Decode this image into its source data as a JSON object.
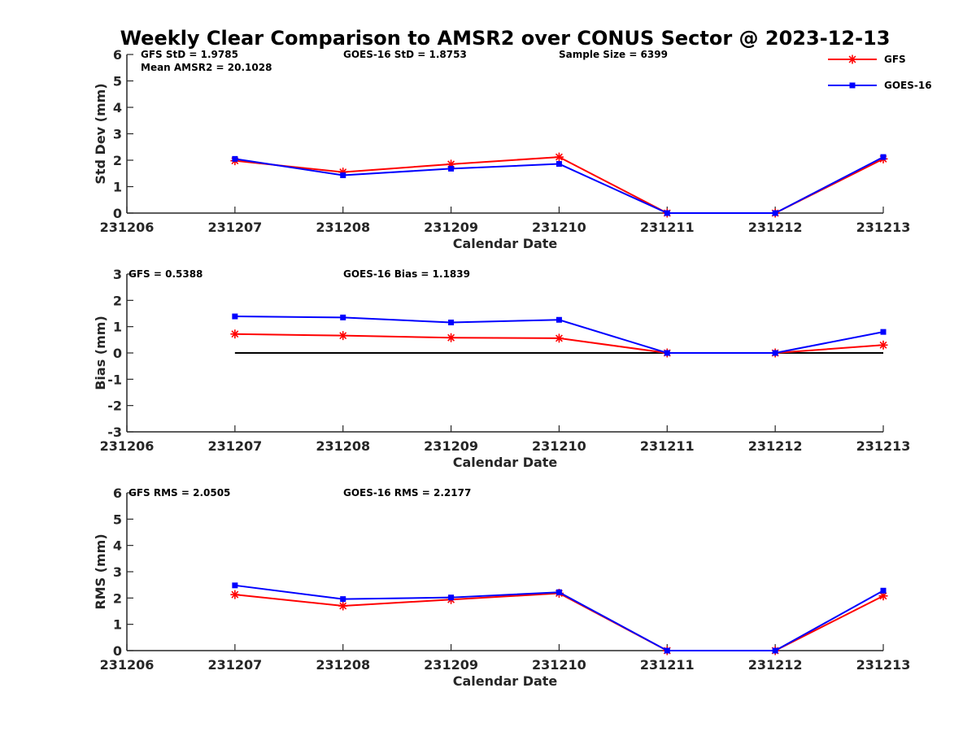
{
  "chart_data": {
    "title": "Weekly Clear Comparison to AMSR2 over CONUS Sector @ 2023-12-13",
    "x_ticks": [
      "231206",
      "231207",
      "231208",
      "231209",
      "231210",
      "231211",
      "231212",
      "231213"
    ],
    "legend": {
      "placement": "top-right",
      "entries": [
        {
          "name": "GFS",
          "color": "#ff0000",
          "marker": "asterisk"
        },
        {
          "name": "GOES-16",
          "color": "#0000ff",
          "marker": "square"
        }
      ]
    },
    "panels": [
      {
        "type": "line",
        "ylabel": "Std Dev (mm)",
        "xlabel": "Calendar Date",
        "ylim": [
          0,
          6
        ],
        "yticks": [
          "0",
          "1",
          "2",
          "3",
          "4",
          "5",
          "6"
        ],
        "annotations": [
          "GFS StD = 1.9785",
          "GOES-16 StD = 1.8753",
          "Sample Size = 6399",
          "Mean AMSR2 = 20.1028"
        ],
        "series": [
          {
            "name": "GFS",
            "color": "#ff0000",
            "marker": "asterisk",
            "x": [
              "231207",
              "231208",
              "231209",
              "231210",
              "231211",
              "231212",
              "231213"
            ],
            "values": [
              1.98,
              1.55,
              1.85,
              2.12,
              0,
              0,
              2.05
            ]
          },
          {
            "name": "GOES-16",
            "color": "#0000ff",
            "marker": "square",
            "x": [
              "231207",
              "231208",
              "231209",
              "231210",
              "231211",
              "231212",
              "231213"
            ],
            "values": [
              2.05,
              1.43,
              1.68,
              1.86,
              0,
              0,
              2.12
            ]
          }
        ]
      },
      {
        "type": "line",
        "ylabel": "Bias (mm)",
        "xlabel": "Calendar Date",
        "ylim": [
          -3,
          3
        ],
        "yticks": [
          "-3",
          "-2",
          "-1",
          "0",
          "1",
          "2",
          "3"
        ],
        "zero_line": true,
        "annotations": [
          "GFS = 0.5388",
          "GOES-16 Bias  = 1.1839"
        ],
        "series": [
          {
            "name": "GFS",
            "color": "#ff0000",
            "marker": "asterisk",
            "x": [
              "231207",
              "231208",
              "231209",
              "231210",
              "231211",
              "231212",
              "231213"
            ],
            "values": [
              0.72,
              0.66,
              0.58,
              0.56,
              0,
              0,
              0.3
            ]
          },
          {
            "name": "GOES-16",
            "color": "#0000ff",
            "marker": "square",
            "x": [
              "231207",
              "231208",
              "231209",
              "231210",
              "231211",
              "231212",
              "231213"
            ],
            "values": [
              1.39,
              1.35,
              1.16,
              1.26,
              0,
              0,
              0.8
            ]
          }
        ]
      },
      {
        "type": "line",
        "ylabel": "RMS (mm)",
        "xlabel": "Calendar Date",
        "ylim": [
          0,
          6
        ],
        "yticks": [
          "0",
          "1",
          "2",
          "3",
          "4",
          "5",
          "6"
        ],
        "annotations": [
          "GFS RMS = 2.0505",
          "GOES-16 RMS = 2.2177"
        ],
        "series": [
          {
            "name": "GFS",
            "color": "#ff0000",
            "marker": "asterisk",
            "x": [
              "231207",
              "231208",
              "231209",
              "231210",
              "231211",
              "231212",
              "231213"
            ],
            "values": [
              2.13,
              1.7,
              1.94,
              2.18,
              0,
              0,
              2.08
            ]
          },
          {
            "name": "GOES-16",
            "color": "#0000ff",
            "marker": "square",
            "x": [
              "231207",
              "231208",
              "231209",
              "231210",
              "231211",
              "231212",
              "231213"
            ],
            "values": [
              2.48,
              1.96,
              2.02,
              2.22,
              0,
              0,
              2.28
            ]
          }
        ]
      }
    ]
  }
}
